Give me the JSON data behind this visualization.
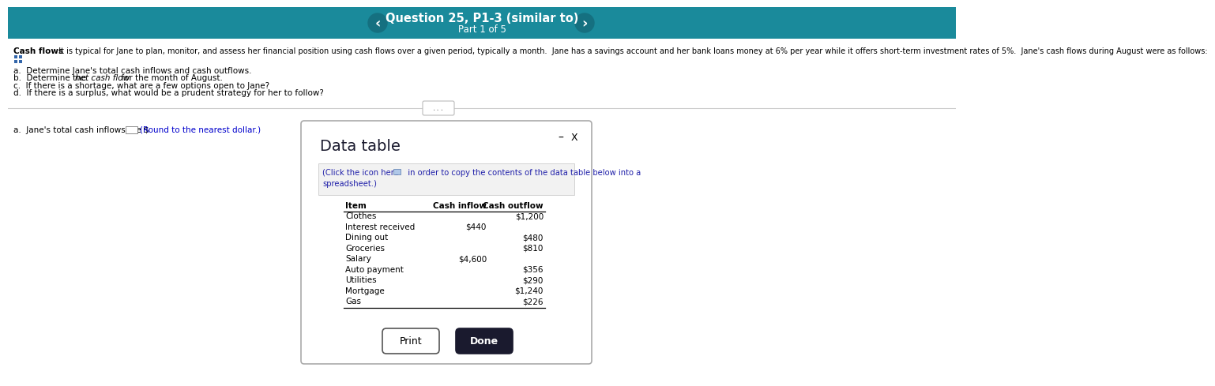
{
  "header_bg_color": "#1a8a9b",
  "header_text": "Question 25, P1-3 (similar to)",
  "header_subtext": "Part 1 of 5",
  "header_text_color": "#ffffff",
  "body_bg_color": "#ffffff",
  "intro_label": "Cash flows",
  "intro_text": "  It is typical for Jane to plan, monitor, and assess her financial position using cash flows over a given period, typically a month.  Jane has a savings account and her bank loans money at 6% per year while it offers short-term investment rates of 5%.  Jane's cash flows during August were as follows:",
  "questions": [
    "a.  Determine Jane's total cash inflows and cash outflows.",
    "b.  Determine the net cash flow for the month of August.",
    "c.  If there is a shortage, what are a few options open to Jane?",
    "d.  If there is a surplus, what would be a prudent strategy for her to follow?"
  ],
  "answer_label": "a.  Jane's total cash inflows are $",
  "answer_hint": "(Round to the nearest dollar.)",
  "answer_hint_color": "#0000cc",
  "divider_color": "#cccccc",
  "modal_title": "Data table",
  "modal_subtitle_color": "#2222aa",
  "modal_border_color": "#aaaaaa",
  "table_headers": [
    "Item",
    "Cash inflow",
    "Cash outflow"
  ],
  "table_rows": [
    [
      "Clothes",
      "",
      "$1,200"
    ],
    [
      "Interest received",
      "$440",
      ""
    ],
    [
      "Dining out",
      "",
      "$480"
    ],
    [
      "Groceries",
      "",
      "$810"
    ],
    [
      "Salary",
      "$4,600",
      ""
    ],
    [
      "Auto payment",
      "",
      "$356"
    ],
    [
      "Utilities",
      "",
      "$290"
    ],
    [
      "Mortgage",
      "",
      "$1,240"
    ],
    [
      "Gas",
      "",
      "$226"
    ]
  ],
  "btn_print_label": "Print",
  "btn_done_label": "Done",
  "btn_done_bg": "#1a1a2e",
  "btn_done_text_color": "#ffffff",
  "btn_print_text_color": "#000000"
}
